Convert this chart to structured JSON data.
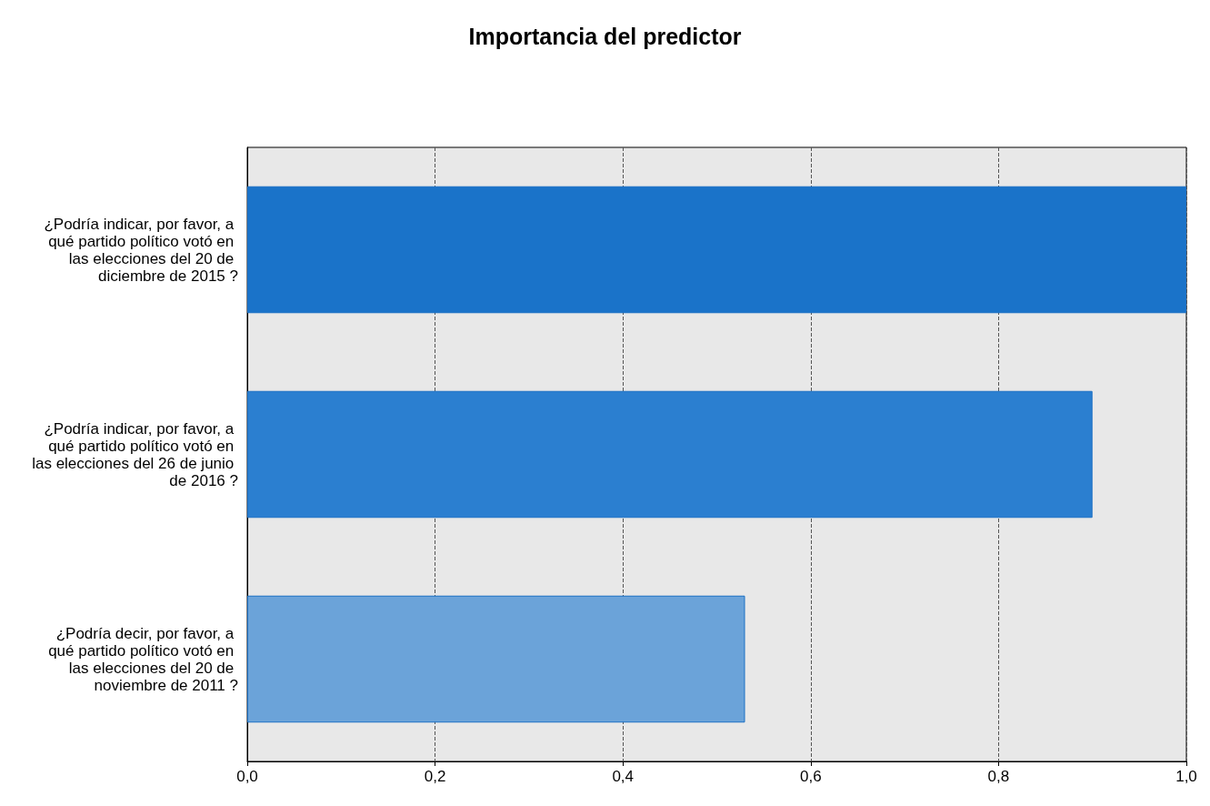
{
  "chart_data": {
    "type": "bar",
    "orientation": "horizontal",
    "title": "Importancia del predictor",
    "categories": [
      "¿Podría indicar, por favor, a qué partido político votó en las elecciones del 20 de diciembre de 2015 ?",
      "¿Podría indicar, por favor, a qué partido político votó en las elecciones del 26 de junio de 2016 ?",
      "¿Podría decir, por favor, a qué partido político votó en las elecciones del 20 de noviembre de 2011 ?"
    ],
    "values": [
      1.0,
      0.9,
      0.53
    ],
    "colors": [
      "#1a73c9",
      "#2b7fd0",
      "#6ba3d9"
    ],
    "xlim": [
      0,
      1
    ],
    "xticks": [
      {
        "value": 0,
        "label": "0,0"
      },
      {
        "value": 0.2,
        "label": "0,2"
      },
      {
        "value": 0.4,
        "label": "0,4"
      },
      {
        "value": 0.6,
        "label": "0,6"
      },
      {
        "value": 0.8,
        "label": "0,8"
      },
      {
        "value": 1,
        "label": "1,0"
      }
    ],
    "grid": "x"
  }
}
